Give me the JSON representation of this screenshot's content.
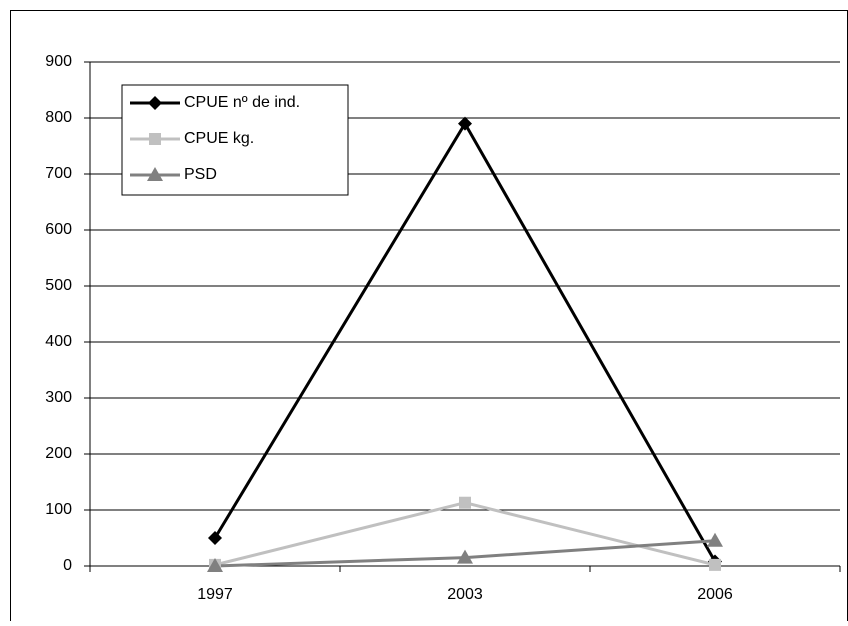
{
  "chart_data": {
    "type": "line",
    "categories": [
      "1997",
      "2003",
      "2006"
    ],
    "series": [
      {
        "name": "CPUE nº de ind.",
        "color": "#000000",
        "marker": "diamond",
        "values": [
          50,
          790,
          8
        ]
      },
      {
        "name": "CPUE kg.",
        "color": "#c0c0c0",
        "marker": "square",
        "values": [
          2,
          113,
          2
        ]
      },
      {
        "name": "PSD",
        "color": "#808080",
        "marker": "triangle",
        "values": [
          0,
          15,
          45
        ]
      }
    ],
    "ylim": [
      0,
      900
    ],
    "yticks": [
      0,
      100,
      200,
      300,
      400,
      500,
      600,
      700,
      800,
      900
    ],
    "grid": true,
    "legend": "upper left"
  }
}
